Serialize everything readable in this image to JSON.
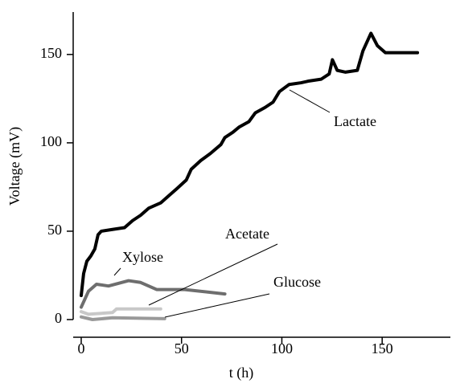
{
  "chart_data": {
    "type": "line",
    "xlabel": "t (h)",
    "ylabel": "Voltage (mV)",
    "xlim": [
      -4,
      184
    ],
    "ylim": [
      0,
      174
    ],
    "xticks": [
      0,
      50,
      100,
      150
    ],
    "yticks": [
      0,
      50,
      100,
      150
    ],
    "series": [
      {
        "name": "Lactate",
        "color": "#000000",
        "x": [
          0,
          1.2,
          2.8,
          4.8,
          6.8,
          8.4,
          10,
          15.6,
          21.6,
          25.6,
          29.6,
          33.6,
          39.6,
          43.6,
          47.6,
          52.4,
          54.8,
          59.6,
          64.4,
          69.6,
          71.6,
          75.6,
          78.8,
          83.6,
          86.8,
          91.6,
          95.6,
          98.8,
          103.6,
          109.6,
          113.6,
          119.6,
          123.6,
          125.2,
          127.6,
          131.6,
          137.6,
          140.4,
          144.4,
          147.6,
          151.6,
          167.6
        ],
        "values": [
          13.6,
          26,
          33,
          36,
          40,
          48,
          50,
          51,
          52,
          56,
          59,
          63,
          66,
          70,
          74,
          79,
          85,
          90,
          94,
          99,
          103,
          106,
          109,
          112,
          117,
          120,
          123,
          129,
          133,
          134,
          135,
          136,
          139,
          147,
          141,
          140,
          141,
          152,
          162,
          155,
          151,
          151
        ]
      },
      {
        "name": "Xylose",
        "color": "#6e6e6e",
        "x": [
          0,
          3.6,
          7.6,
          13.6,
          23.6,
          29.6,
          37.6,
          51.6,
          71.6
        ],
        "values": [
          7,
          16,
          20,
          19,
          22,
          21,
          17,
          17,
          14.5
        ]
      },
      {
        "name": "Acetate",
        "color": "#c8c8c8",
        "x": [
          0,
          3.6,
          15.6,
          17.6,
          39.6
        ],
        "values": [
          4.5,
          3,
          4,
          6,
          6
        ]
      },
      {
        "name": "Glucose",
        "color": "#999999",
        "x": [
          0,
          5.6,
          15.6,
          41.6
        ],
        "values": [
          1.5,
          0,
          1,
          0.5
        ]
      }
    ]
  }
}
